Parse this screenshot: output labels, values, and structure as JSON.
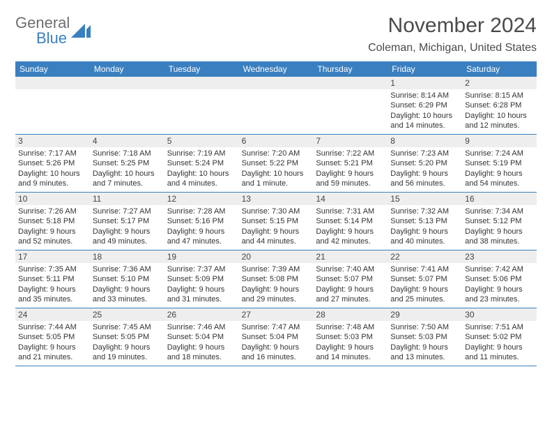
{
  "logo": {
    "text1": "General",
    "text2": "Blue",
    "triangle_color": "#3a7fbf"
  },
  "header": {
    "month_title": "November 2024",
    "location": "Coleman, Michigan, United States"
  },
  "weekdays": [
    "Sunday",
    "Monday",
    "Tuesday",
    "Wednesday",
    "Thursday",
    "Friday",
    "Saturday"
  ],
  "colors": {
    "header_bar": "#3a7fbf",
    "day_bar_bg": "#eeeeee",
    "text": "#333333",
    "title_text": "#4a4a4a"
  },
  "weeks": [
    [
      {
        "empty": true
      },
      {
        "empty": true
      },
      {
        "empty": true
      },
      {
        "empty": true
      },
      {
        "empty": true
      },
      {
        "num": "1",
        "sunrise": "8:14 AM",
        "sunset": "6:29 PM",
        "daylight": "10 hours and 14 minutes."
      },
      {
        "num": "2",
        "sunrise": "8:15 AM",
        "sunset": "6:28 PM",
        "daylight": "10 hours and 12 minutes."
      }
    ],
    [
      {
        "num": "3",
        "sunrise": "7:17 AM",
        "sunset": "5:26 PM",
        "daylight": "10 hours and 9 minutes."
      },
      {
        "num": "4",
        "sunrise": "7:18 AM",
        "sunset": "5:25 PM",
        "daylight": "10 hours and 7 minutes."
      },
      {
        "num": "5",
        "sunrise": "7:19 AM",
        "sunset": "5:24 PM",
        "daylight": "10 hours and 4 minutes."
      },
      {
        "num": "6",
        "sunrise": "7:20 AM",
        "sunset": "5:22 PM",
        "daylight": "10 hours and 1 minute."
      },
      {
        "num": "7",
        "sunrise": "7:22 AM",
        "sunset": "5:21 PM",
        "daylight": "9 hours and 59 minutes."
      },
      {
        "num": "8",
        "sunrise": "7:23 AM",
        "sunset": "5:20 PM",
        "daylight": "9 hours and 56 minutes."
      },
      {
        "num": "9",
        "sunrise": "7:24 AM",
        "sunset": "5:19 PM",
        "daylight": "9 hours and 54 minutes."
      }
    ],
    [
      {
        "num": "10",
        "sunrise": "7:26 AM",
        "sunset": "5:18 PM",
        "daylight": "9 hours and 52 minutes."
      },
      {
        "num": "11",
        "sunrise": "7:27 AM",
        "sunset": "5:17 PM",
        "daylight": "9 hours and 49 minutes."
      },
      {
        "num": "12",
        "sunrise": "7:28 AM",
        "sunset": "5:16 PM",
        "daylight": "9 hours and 47 minutes."
      },
      {
        "num": "13",
        "sunrise": "7:30 AM",
        "sunset": "5:15 PM",
        "daylight": "9 hours and 44 minutes."
      },
      {
        "num": "14",
        "sunrise": "7:31 AM",
        "sunset": "5:14 PM",
        "daylight": "9 hours and 42 minutes."
      },
      {
        "num": "15",
        "sunrise": "7:32 AM",
        "sunset": "5:13 PM",
        "daylight": "9 hours and 40 minutes."
      },
      {
        "num": "16",
        "sunrise": "7:34 AM",
        "sunset": "5:12 PM",
        "daylight": "9 hours and 38 minutes."
      }
    ],
    [
      {
        "num": "17",
        "sunrise": "7:35 AM",
        "sunset": "5:11 PM",
        "daylight": "9 hours and 35 minutes."
      },
      {
        "num": "18",
        "sunrise": "7:36 AM",
        "sunset": "5:10 PM",
        "daylight": "9 hours and 33 minutes."
      },
      {
        "num": "19",
        "sunrise": "7:37 AM",
        "sunset": "5:09 PM",
        "daylight": "9 hours and 31 minutes."
      },
      {
        "num": "20",
        "sunrise": "7:39 AM",
        "sunset": "5:08 PM",
        "daylight": "9 hours and 29 minutes."
      },
      {
        "num": "21",
        "sunrise": "7:40 AM",
        "sunset": "5:07 PM",
        "daylight": "9 hours and 27 minutes."
      },
      {
        "num": "22",
        "sunrise": "7:41 AM",
        "sunset": "5:07 PM",
        "daylight": "9 hours and 25 minutes."
      },
      {
        "num": "23",
        "sunrise": "7:42 AM",
        "sunset": "5:06 PM",
        "daylight": "9 hours and 23 minutes."
      }
    ],
    [
      {
        "num": "24",
        "sunrise": "7:44 AM",
        "sunset": "5:05 PM",
        "daylight": "9 hours and 21 minutes."
      },
      {
        "num": "25",
        "sunrise": "7:45 AM",
        "sunset": "5:05 PM",
        "daylight": "9 hours and 19 minutes."
      },
      {
        "num": "26",
        "sunrise": "7:46 AM",
        "sunset": "5:04 PM",
        "daylight": "9 hours and 18 minutes."
      },
      {
        "num": "27",
        "sunrise": "7:47 AM",
        "sunset": "5:04 PM",
        "daylight": "9 hours and 16 minutes."
      },
      {
        "num": "28",
        "sunrise": "7:48 AM",
        "sunset": "5:03 PM",
        "daylight": "9 hours and 14 minutes."
      },
      {
        "num": "29",
        "sunrise": "7:50 AM",
        "sunset": "5:03 PM",
        "daylight": "9 hours and 13 minutes."
      },
      {
        "num": "30",
        "sunrise": "7:51 AM",
        "sunset": "5:02 PM",
        "daylight": "9 hours and 11 minutes."
      }
    ]
  ],
  "labels": {
    "sunrise_prefix": "Sunrise: ",
    "sunset_prefix": "Sunset: ",
    "daylight_prefix": "Daylight: "
  }
}
